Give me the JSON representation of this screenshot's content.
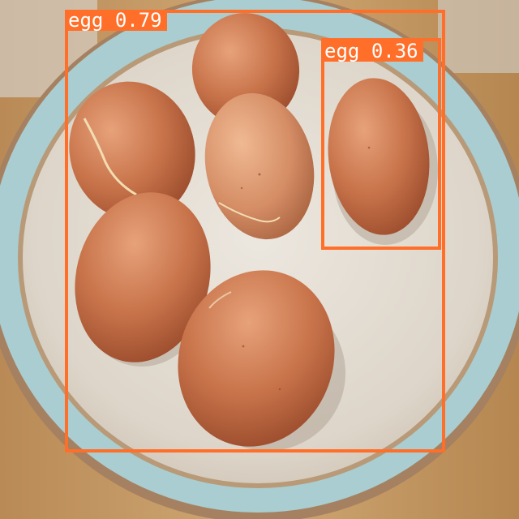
{
  "detections": [
    {
      "label": "egg",
      "score": "0.79",
      "color": "#ff6f2a"
    },
    {
      "label": "egg",
      "score": "0.36",
      "color": "#ff6f2a"
    }
  ],
  "scene_colors": {
    "counter": "#c8a67a",
    "plate_rim": "#a9cdd0",
    "plate_center": "#e7e1d8",
    "egg": "#c8734a"
  }
}
